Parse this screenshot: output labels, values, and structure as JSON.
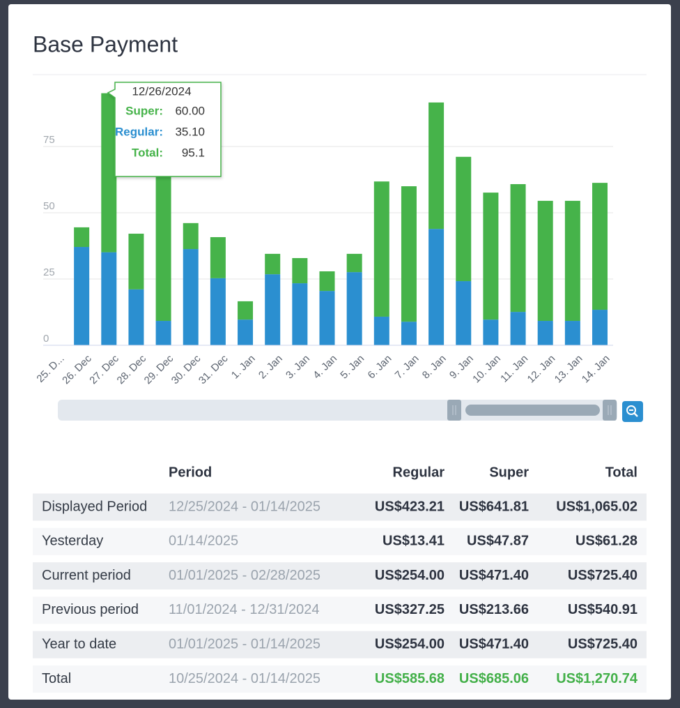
{
  "chart_data": {
    "type": "bar",
    "stacked": true,
    "title": "Base Payment",
    "categories": [
      "25. D...",
      "26. Dec",
      "27. Dec",
      "28. Dec",
      "29. Dec",
      "30. Dec",
      "31. Dec",
      "1. Jan",
      "2. Jan",
      "3. Jan",
      "4. Jan",
      "5. Jan",
      "6. Jan",
      "7. Jan",
      "8. Jan",
      "9. Jan",
      "10. Jan",
      "11. Jan",
      "12. Jan",
      "13. Jan",
      "14. Jan"
    ],
    "series": [
      {
        "color": "#2b8fd0",
        "values": [
          null,
          37.1,
          35.1,
          21.1,
          9.2,
          36.3,
          25.3,
          9.7,
          26.8,
          23.4,
          20.5,
          27.6,
          10.8,
          8.9,
          43.9,
          24.2,
          9.7,
          12.6,
          9.2,
          9.2,
          13.41
        ]
      },
      {
        "color": "#46b34a",
        "values": [
          null,
          7.4,
          60.0,
          21.0,
          57.8,
          9.8,
          15.5,
          6.9,
          7.7,
          9.5,
          7.4,
          6.9,
          51.0,
          51.1,
          47.7,
          46.9,
          47.9,
          48.2,
          45.3,
          45.3,
          47.87
        ]
      }
    ],
    "ylim": [
      0,
      100
    ],
    "yticks": [
      0,
      25,
      50,
      75
    ],
    "grid": true,
    "tooltip": {
      "date": "12/26/2024",
      "rows": [
        {
          "label": "Super:",
          "value": "60.00",
          "color": "#46b34a"
        },
        {
          "label": "Regular:",
          "value": "35.10",
          "color": "#2b8fd0"
        },
        {
          "label": "Total:",
          "value": "95.1",
          "color": "#46b34a"
        }
      ]
    }
  },
  "table": {
    "header": [
      "Period",
      "Regular",
      "Super",
      "Total"
    ],
    "rows": [
      [
        "Displayed Period",
        "12/25/2024 - 01/14/2025",
        "US$423.21",
        "US$641.81",
        "US$1,065.02"
      ],
      [
        "Yesterday",
        "01/14/2025",
        "US$13.41",
        "US$47.87",
        "US$61.28"
      ],
      [
        "Current period",
        "01/01/2025 - 02/28/2025",
        "US$254.00",
        "US$471.40",
        "US$725.40"
      ],
      [
        "Previous period",
        "11/01/2024 - 12/31/2024",
        "US$327.25",
        "US$213.66",
        "US$540.91"
      ],
      [
        "Year to date",
        "01/01/2025 - 01/14/2025",
        "US$254.00",
        "US$471.40",
        "US$725.40"
      ],
      [
        "Total",
        "10/25/2024 - 01/14/2025",
        "US$585.68",
        "US$685.06",
        "US$1,270.74"
      ]
    ]
  }
}
